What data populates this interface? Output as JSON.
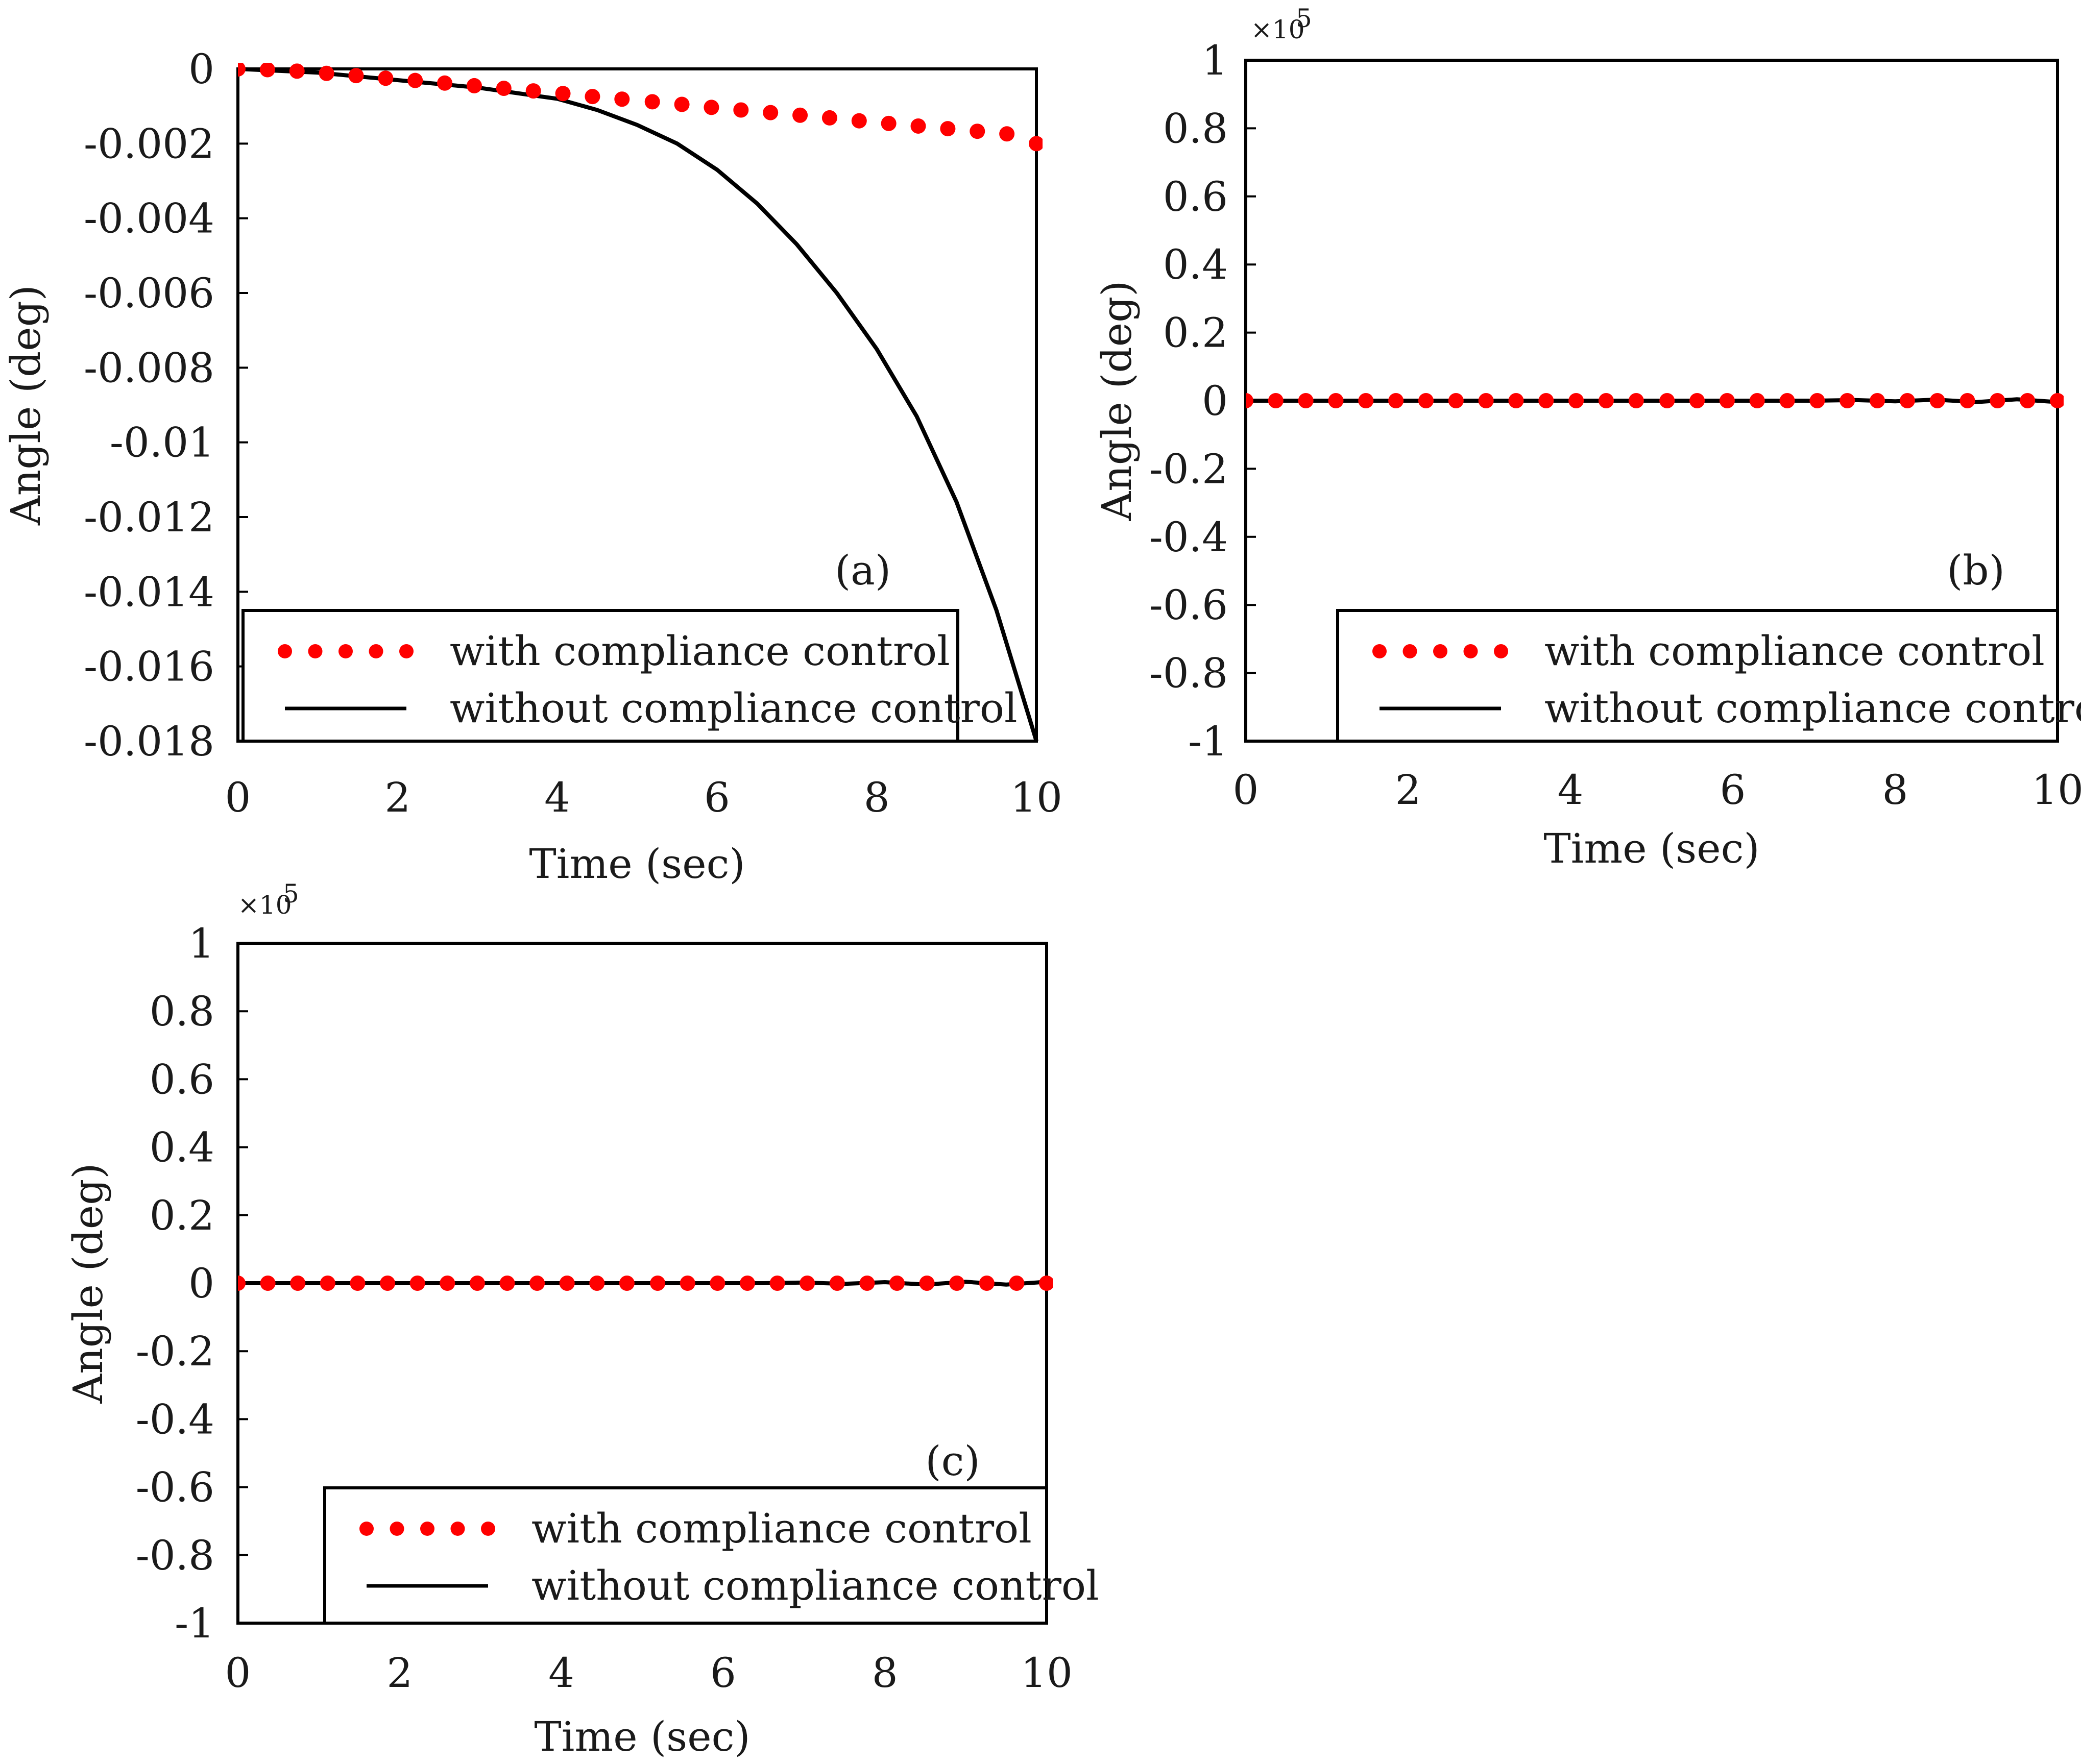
{
  "chart_data": [
    {
      "type": "line",
      "panel_label": "(a)",
      "xlabel": "Time (sec)",
      "ylabel": "Angle (deg)",
      "xlim": [
        0,
        10
      ],
      "ylim": [
        -0.018,
        0
      ],
      "xticks": [
        "0",
        "2",
        "4",
        "6",
        "8",
        "10"
      ],
      "yticks": [
        "0",
        "-0.002",
        "-0.004",
        "-0.006",
        "-0.008",
        "-0.01",
        "-0.012",
        "-0.014",
        "-0.016",
        "-0.018"
      ],
      "exponent_label": "",
      "legend_position": "bottom-right",
      "series": [
        {
          "name": "with compliance control",
          "style": "dotted",
          "color": "#ff0000",
          "x": [
            0,
            0.37,
            0.74,
            1.11,
            1.48,
            1.85,
            2.22,
            2.59,
            2.96,
            3.33,
            3.7,
            4.07,
            4.44,
            4.81,
            5.19,
            5.56,
            5.93,
            6.3,
            6.67,
            7.04,
            7.41,
            7.78,
            8.15,
            8.52,
            8.89,
            9.26,
            9.63,
            10
          ],
          "y": [
            0,
            -2e-05,
            -6e-05,
            -0.00012,
            -0.00018,
            -0.00025,
            -0.00031,
            -0.00038,
            -0.00045,
            -0.00052,
            -0.00059,
            -0.00066,
            -0.00074,
            -0.00081,
            -0.00088,
            -0.00095,
            -0.00103,
            -0.0011,
            -0.00117,
            -0.00124,
            -0.00131,
            -0.00139,
            -0.00146,
            -0.00153,
            -0.0016,
            -0.00167,
            -0.00174,
            -0.002
          ]
        },
        {
          "name": "without compliance control",
          "style": "solid",
          "color": "#000000",
          "x": [
            0,
            1,
            2,
            3,
            4,
            4.5,
            5,
            5.5,
            6,
            6.5,
            7,
            7.5,
            8,
            8.5,
            9,
            9.5,
            10
          ],
          "y": [
            0,
            -0.0001,
            -0.0003,
            -0.0005,
            -0.0008,
            -0.0011,
            -0.0015,
            -0.002,
            -0.0027,
            -0.0036,
            -0.0047,
            -0.006,
            -0.0075,
            -0.0093,
            -0.0116,
            -0.0145,
            -0.018
          ]
        }
      ]
    },
    {
      "type": "line",
      "panel_label": "(b)",
      "xlabel": "Time (sec)",
      "ylabel": "Angle (deg)",
      "xlim": [
        0,
        10
      ],
      "ylim": [
        -1,
        1
      ],
      "xticks": [
        "0",
        "2",
        "4",
        "6",
        "8",
        "10"
      ],
      "yticks": [
        "1",
        "0.8",
        "0.6",
        "0.4",
        "0.2",
        "0",
        "-0.2",
        "-0.4",
        "-0.6",
        "-0.8",
        "-1"
      ],
      "exponent_label": "×10",
      "exponent_power": "5",
      "legend_position": "bottom-right",
      "series": [
        {
          "name": "with compliance control",
          "style": "dotted",
          "color": "#ff0000",
          "x": [
            0,
            0.37,
            0.74,
            1.11,
            1.48,
            1.85,
            2.22,
            2.59,
            2.96,
            3.33,
            3.7,
            4.07,
            4.44,
            4.81,
            5.19,
            5.56,
            5.93,
            6.3,
            6.67,
            7.04,
            7.41,
            7.78,
            8.15,
            8.52,
            8.89,
            9.26,
            9.63,
            10
          ],
          "y": [
            0,
            0,
            0,
            0,
            0,
            0,
            0,
            0,
            0,
            0,
            0,
            0,
            0,
            0,
            0,
            0,
            0,
            0,
            0,
            0,
            0,
            0,
            0,
            0,
            0,
            0,
            0,
            0
          ]
        },
        {
          "name": "without compliance control",
          "style": "solid",
          "color": "#000000",
          "x": [
            0,
            7,
            7.5,
            8,
            8.5,
            9,
            9.5,
            10
          ],
          "y": [
            0,
            0,
            0.002,
            -0.002,
            0.003,
            -0.004,
            0.004,
            -0.004
          ]
        }
      ]
    },
    {
      "type": "line",
      "panel_label": "(c)",
      "xlabel": "Time (sec)",
      "ylabel": "Angle (deg)",
      "xlim": [
        0,
        10
      ],
      "ylim": [
        -1,
        1
      ],
      "xticks": [
        "0",
        "2",
        "4",
        "6",
        "8",
        "10"
      ],
      "yticks": [
        "1",
        "0.8",
        "0.6",
        "0.4",
        "0.2",
        "0",
        "-0.2",
        "-0.4",
        "-0.6",
        "-0.8",
        "-1"
      ],
      "exponent_label": "×10",
      "exponent_power": "5",
      "legend_position": "bottom-right",
      "series": [
        {
          "name": "with compliance control",
          "style": "dotted",
          "color": "#ff0000",
          "x": [
            0,
            0.37,
            0.74,
            1.11,
            1.48,
            1.85,
            2.22,
            2.59,
            2.96,
            3.33,
            3.7,
            4.07,
            4.44,
            4.81,
            5.19,
            5.56,
            5.93,
            6.3,
            6.67,
            7.04,
            7.41,
            7.78,
            8.15,
            8.52,
            8.89,
            9.26,
            9.63,
            10
          ],
          "y": [
            0,
            0,
            0,
            0,
            0,
            0,
            0,
            0,
            0,
            0,
            0,
            0,
            0,
            0,
            0,
            0,
            0,
            0,
            0,
            0,
            0,
            0,
            0,
            0,
            0,
            0,
            0,
            0
          ]
        },
        {
          "name": "without compliance control",
          "style": "solid",
          "color": "#000000",
          "x": [
            0,
            6.5,
            7,
            7.5,
            8,
            8.5,
            9,
            9.5,
            10
          ],
          "y": [
            0,
            0,
            0.002,
            -0.002,
            0.003,
            -0.004,
            0.004,
            -0.004,
            0.004
          ]
        }
      ]
    }
  ]
}
